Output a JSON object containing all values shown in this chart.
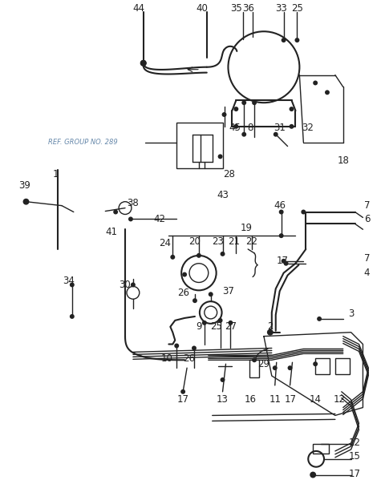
{
  "bg_color": "#ffffff",
  "line_color": "#222222",
  "ref_text": "REF. GROUP NO. 289",
  "ref_color": "#6688aa"
}
